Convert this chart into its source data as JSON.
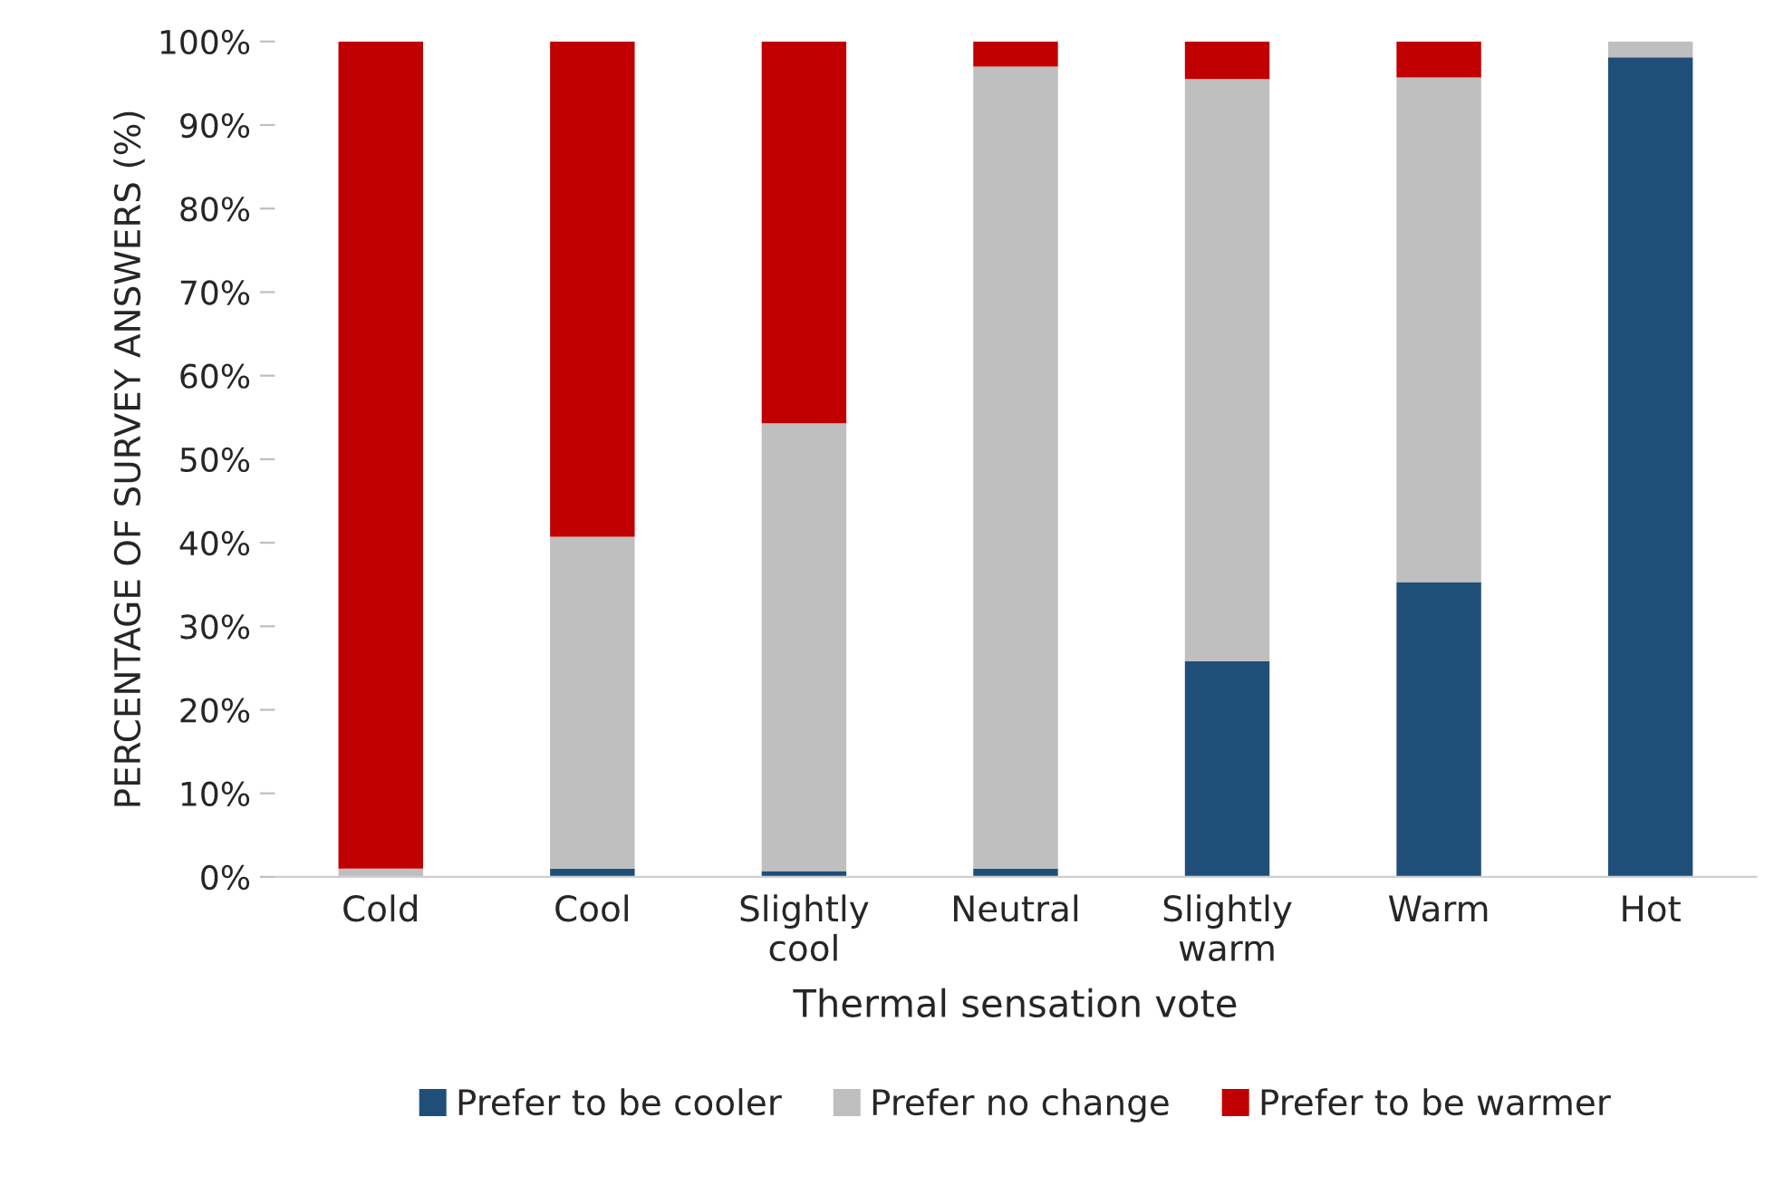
{
  "chart_data": {
    "type": "bar",
    "stacked": true,
    "categories": [
      "Cold",
      "Cool",
      "Slightly\ncool",
      "Neutral",
      "Slightly\nwarm",
      "Warm",
      "Hot"
    ],
    "series": [
      {
        "name": "Prefer to be cooler",
        "color": "#1f4e79",
        "values": [
          0,
          1,
          0.7,
          1,
          25.8,
          35.3,
          98.1
        ]
      },
      {
        "name": "Prefer no change",
        "color": "#bfbfbf",
        "values": [
          1,
          39.7,
          53.6,
          96,
          69.7,
          60.4,
          1.9
        ]
      },
      {
        "name": "Prefer to be warmer",
        "color": "#c00000",
        "values": [
          99,
          59.3,
          45.7,
          3,
          4.5,
          4.3,
          0
        ]
      }
    ],
    "xlabel": "Thermal sensation vote",
    "ylabel": "PERCENTAGE OF SURVEY ANSWERS (%)",
    "ylim": [
      0,
      100
    ],
    "yticks": [
      {
        "value": 0,
        "label": "0%"
      },
      {
        "value": 10,
        "label": "10%"
      },
      {
        "value": 20,
        "label": "20%"
      },
      {
        "value": 30,
        "label": "30%"
      },
      {
        "value": 40,
        "label": "40%"
      },
      {
        "value": 50,
        "label": "50%"
      },
      {
        "value": 60,
        "label": "60%"
      },
      {
        "value": 70,
        "label": "70%"
      },
      {
        "value": 80,
        "label": "80%"
      },
      {
        "value": 90,
        "label": "90%"
      },
      {
        "value": 100,
        "label": "100%"
      }
    ],
    "grid": false,
    "legend": "bottom"
  }
}
